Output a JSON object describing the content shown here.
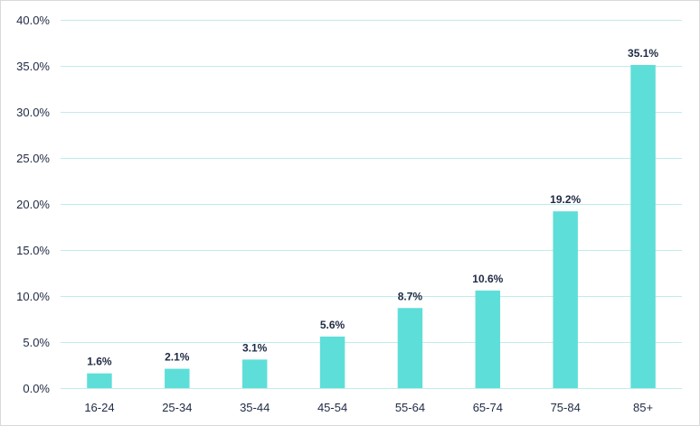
{
  "chart_data": {
    "type": "bar",
    "title": "",
    "xlabel": "",
    "ylabel": "",
    "categories": [
      "16-24",
      "25-34",
      "35-44",
      "45-54",
      "55-64",
      "65-74",
      "75-84",
      "85+"
    ],
    "values": [
      1.6,
      2.1,
      3.1,
      5.6,
      8.7,
      10.6,
      19.2,
      35.1
    ],
    "data_labels": [
      "1.6%",
      "2.1%",
      "3.1%",
      "5.6%",
      "8.7%",
      "10.6%",
      "19.2%",
      "35.1%"
    ],
    "ylim": [
      0,
      40
    ],
    "y_ticks": [
      0,
      5,
      10,
      15,
      20,
      25,
      30,
      35,
      40
    ],
    "y_tick_labels": [
      "0.0%",
      "5.0%",
      "10.0%",
      "15.0%",
      "20.0%",
      "25.0%",
      "30.0%",
      "35.0%",
      "40.0%"
    ],
    "grid": true,
    "legend": "none",
    "bar_color": "#5eded8",
    "grid_color": "#bfeceb",
    "text_color": "#1f2a44"
  }
}
